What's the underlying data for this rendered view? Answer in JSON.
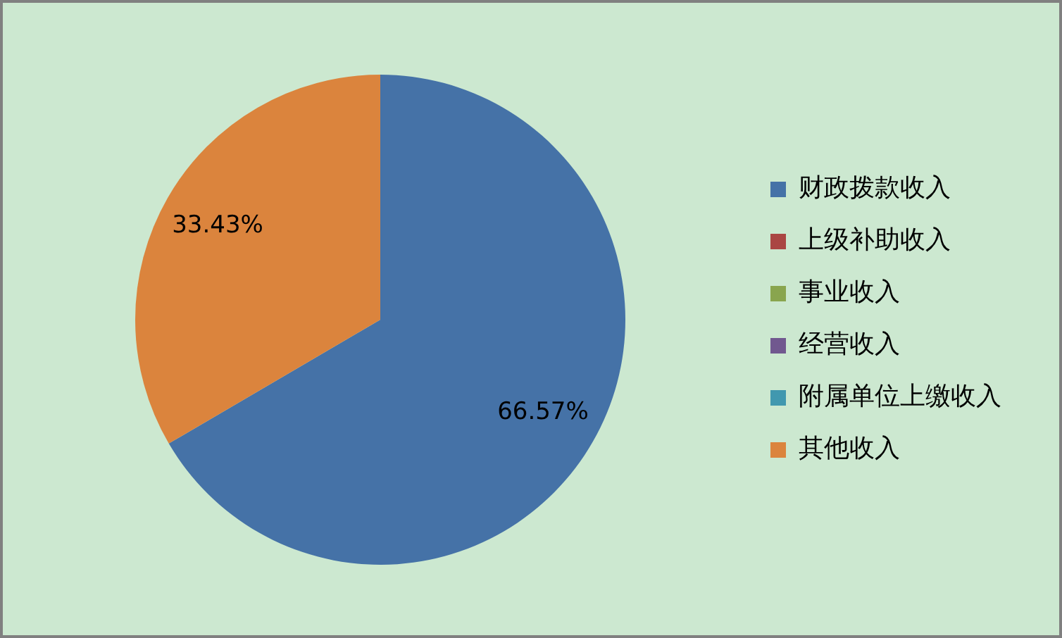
{
  "chart_data": {
    "type": "pie",
    "categories": [
      "财政拨款收入",
      "上级补助收入",
      "事业收入",
      "经营收入",
      "附属单位上缴收入",
      "其他收入"
    ],
    "values": [
      66.57,
      0,
      0,
      0,
      0,
      33.43
    ],
    "colors": [
      "#4572a7",
      "#aa4643",
      "#89a54e",
      "#71588f",
      "#4198af",
      "#db843d"
    ],
    "value_labels": [
      "66.57%",
      null,
      null,
      null,
      null,
      "33.43%"
    ],
    "legend": "right"
  }
}
